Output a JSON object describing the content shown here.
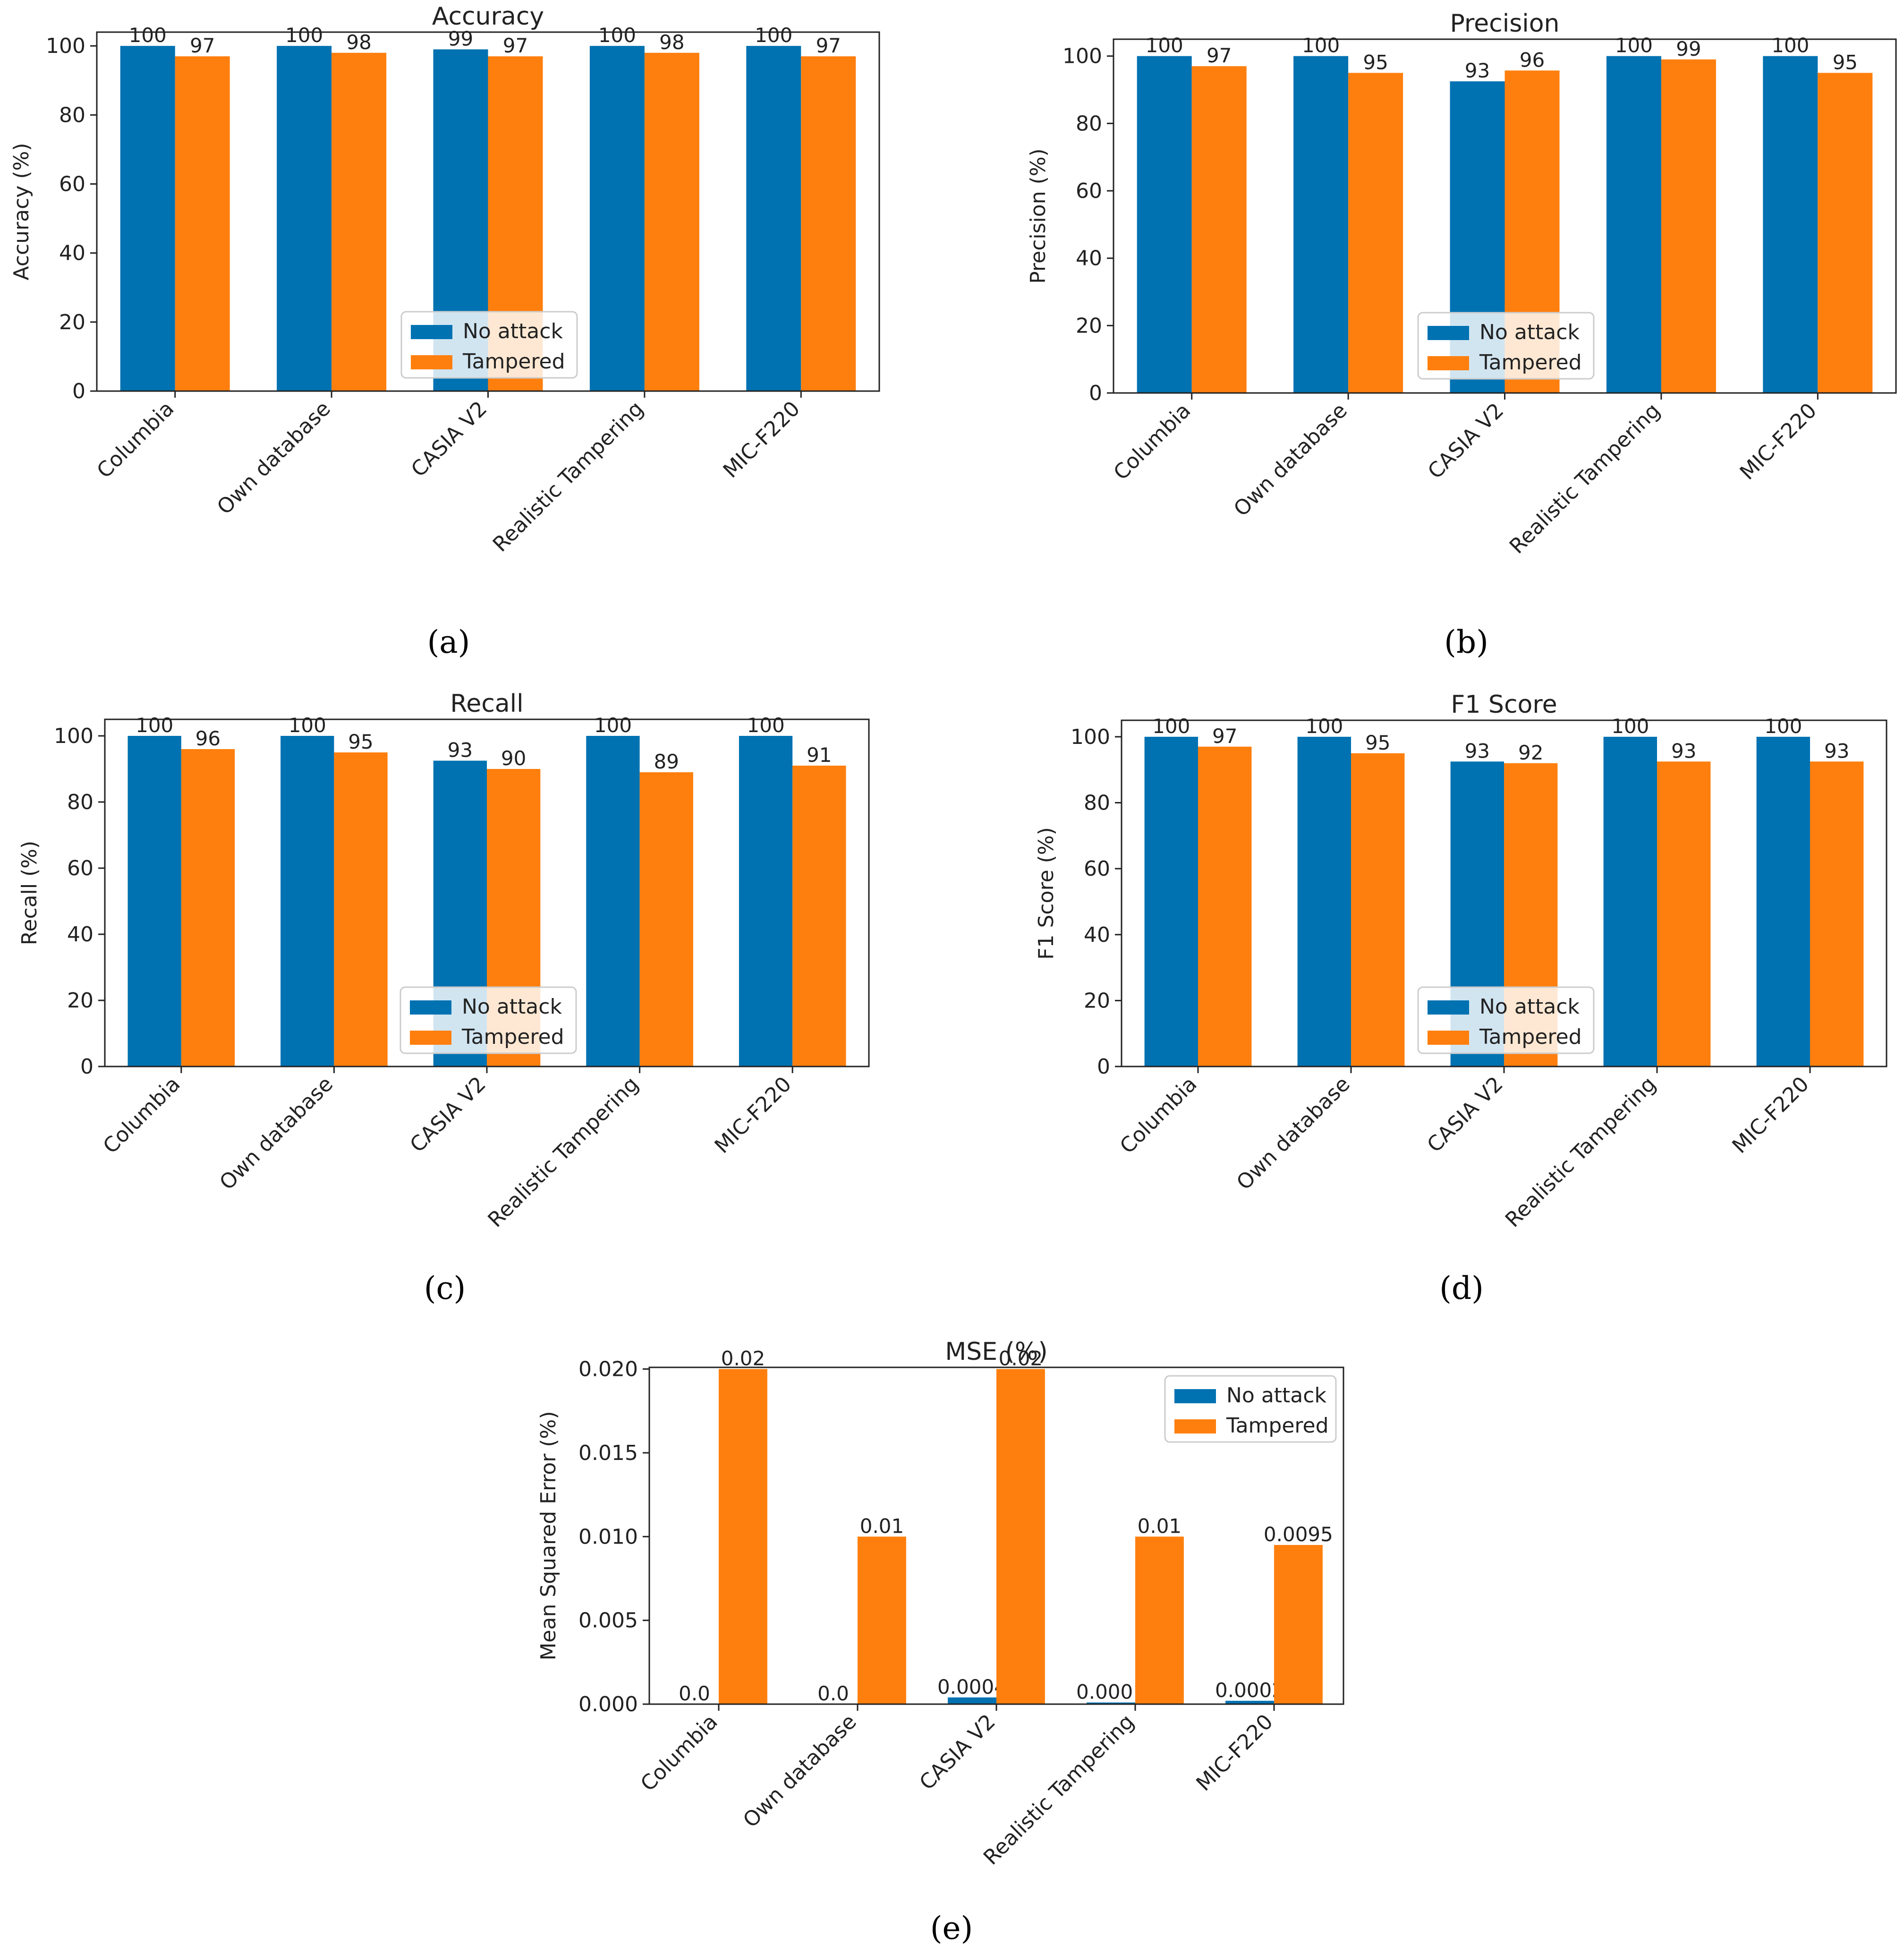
{
  "legend_labels": [
    "No attack",
    "Tampered"
  ],
  "colors": {
    "no_attack": "#0072B2",
    "tampered": "#FF7F0E",
    "axis": "#222222"
  },
  "captions": [
    "(a)",
    "(b)",
    "(c)",
    "(d)",
    "(e)"
  ],
  "chart_data": [
    {
      "id": "a",
      "type": "bar",
      "title": "Accuracy",
      "xlabel": "",
      "ylabel": "Accuracy (%)",
      "categories": [
        "Columbia",
        "Own database",
        "CASIA V2",
        "Realistic Tampering",
        "MIC-F220"
      ],
      "series": [
        {
          "name": "No attack",
          "values": [
            100,
            100,
            99,
            100,
            100
          ],
          "labels": [
            "100",
            "100",
            "99",
            "100",
            "100"
          ]
        },
        {
          "name": "Tampered",
          "values": [
            97,
            98,
            97,
            98,
            97
          ],
          "labels": [
            "97",
            "98",
            "97",
            "98",
            "97"
          ]
        }
      ],
      "ylim": [
        0,
        104
      ],
      "yticks": [
        "0",
        "20",
        "40",
        "60",
        "80",
        "100"
      ],
      "legend": "lower-center"
    },
    {
      "id": "b",
      "type": "bar",
      "title": "Precision",
      "xlabel": "",
      "ylabel": "Precision (%)",
      "categories": [
        "Columbia",
        "Own database",
        "CASIA V2",
        "Realistic Tampering",
        "MIC-F220"
      ],
      "series": [
        {
          "name": "No attack",
          "values": [
            100,
            100,
            92.5,
            100,
            100
          ],
          "labels": [
            "100",
            "100",
            "93",
            "100",
            "100"
          ]
        },
        {
          "name": "Tampered",
          "values": [
            97,
            95,
            95.7,
            99,
            95
          ],
          "labels": [
            "97",
            "95",
            "96",
            "99",
            "95"
          ]
        }
      ],
      "ylim": [
        0,
        105
      ],
      "yticks": [
        "0",
        "20",
        "40",
        "60",
        "80",
        "100"
      ],
      "legend": "lower-center"
    },
    {
      "id": "c",
      "type": "bar",
      "title": "Recall",
      "xlabel": "",
      "ylabel": "Recall (%)",
      "categories": [
        "Columbia",
        "Own database",
        "CASIA V2",
        "Realistic Tampering",
        "MIC-F220"
      ],
      "series": [
        {
          "name": "No attack",
          "values": [
            100,
            100,
            92.5,
            100,
            100
          ],
          "labels": [
            "100",
            "100",
            "93",
            "100",
            "100"
          ]
        },
        {
          "name": "Tampered",
          "values": [
            96,
            95,
            90,
            89,
            91
          ],
          "labels": [
            "96",
            "95",
            "90",
            "89",
            "91"
          ]
        }
      ],
      "ylim": [
        0,
        105
      ],
      "yticks": [
        "0",
        "20",
        "40",
        "60",
        "80",
        "100"
      ],
      "legend": "lower-center"
    },
    {
      "id": "d",
      "type": "bar",
      "title": "F1 Score",
      "xlabel": "",
      "ylabel": "F1 Score (%)",
      "categories": [
        "Columbia",
        "Own database",
        "CASIA V2",
        "Realistic Tampering",
        "MIC-F220"
      ],
      "series": [
        {
          "name": "No attack",
          "values": [
            100,
            100,
            92.5,
            100,
            100
          ],
          "labels": [
            "100",
            "100",
            "93",
            "100",
            "100"
          ]
        },
        {
          "name": "Tampered",
          "values": [
            97,
            95,
            92,
            92.5,
            92.5
          ],
          "labels": [
            "97",
            "95",
            "92",
            "93",
            "93"
          ]
        }
      ],
      "ylim": [
        0,
        105
      ],
      "yticks": [
        "0",
        "20",
        "40",
        "60",
        "80",
        "100"
      ],
      "legend": "lower-center"
    },
    {
      "id": "e",
      "type": "bar",
      "title": "MSE (%)",
      "xlabel": "",
      "ylabel": "Mean Squared Error (%)",
      "categories": [
        "Columbia",
        "Own database",
        "CASIA V2",
        "Realistic Tampering",
        "MIC-F220"
      ],
      "series": [
        {
          "name": "No attack",
          "values": [
            0.0,
            0.0,
            0.0004,
            0.0001,
            0.0002
          ],
          "labels": [
            "0.0",
            "0.0",
            "0.0004",
            "0.0001",
            "0.0002"
          ]
        },
        {
          "name": "Tampered",
          "values": [
            0.02,
            0.01,
            0.02,
            0.01,
            0.0095
          ],
          "labels": [
            "0.02",
            "0.01",
            "0.02",
            "0.01",
            "0.0095"
          ]
        }
      ],
      "ylim": [
        0,
        0.0201
      ],
      "yticks": [
        "0.000",
        "0.005",
        "0.010",
        "0.015",
        "0.020"
      ],
      "legend": "upper-right"
    }
  ]
}
